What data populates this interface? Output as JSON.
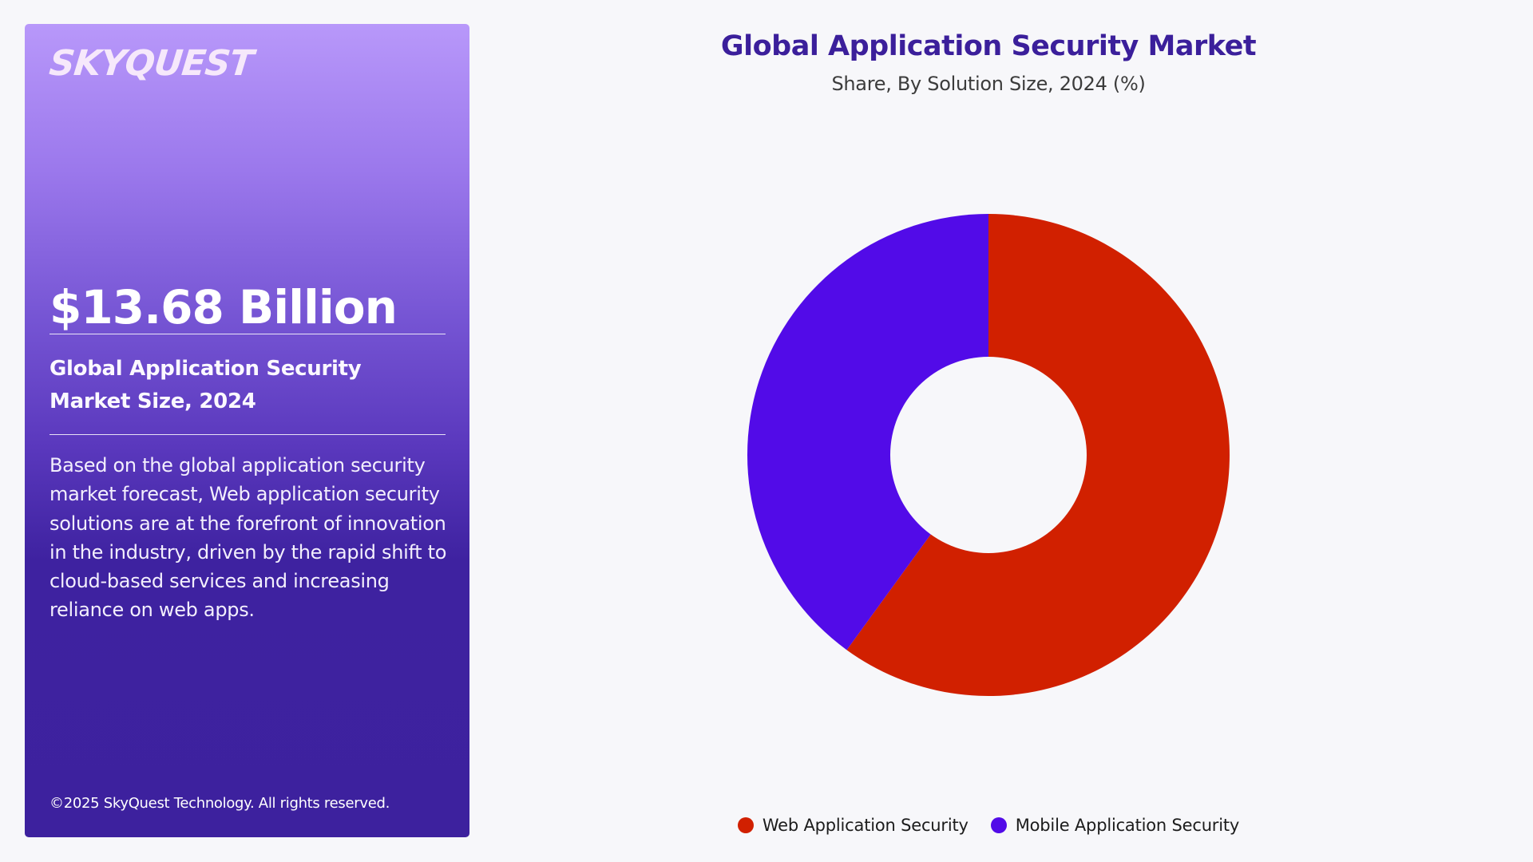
{
  "panel": {
    "logo": "SKYQUEST",
    "market_value": "$13.68 Billion",
    "market_label": "Global Application Security Market Size, 2024",
    "description": "Based on the global application security market forecast, Web application security solutions are at the forefront of innovation in the industry, driven by the rapid shift to cloud-based services and increasing reliance on web apps.",
    "footer": "©2025 SkyQuest Technology. All rights reserved."
  },
  "colors": {
    "web": "#d12000",
    "mobile": "#520be8",
    "title": "#3b1f9b",
    "panel_top": "#b898fa",
    "panel_bottom": "#3d219e"
  },
  "legend": [
    {
      "label": "Web Application Security",
      "color": "#d12000"
    },
    {
      "label": "Mobile Application Security",
      "color": "#520be8"
    }
  ],
  "chart_data": {
    "type": "pie",
    "subtype": "donut",
    "title": "Global Application Security Market",
    "subtitle": "Share, By Solution Size, 2024 (%)",
    "categories": [
      "Web Application Security",
      "Mobile Application Security"
    ],
    "values": [
      60,
      40
    ],
    "colors": [
      "#d12000",
      "#520be8"
    ],
    "start_angle_deg": 0,
    "direction": "clockwise",
    "inner_radius_ratio": 0.41,
    "legend_position": "bottom",
    "data_labels": false
  }
}
